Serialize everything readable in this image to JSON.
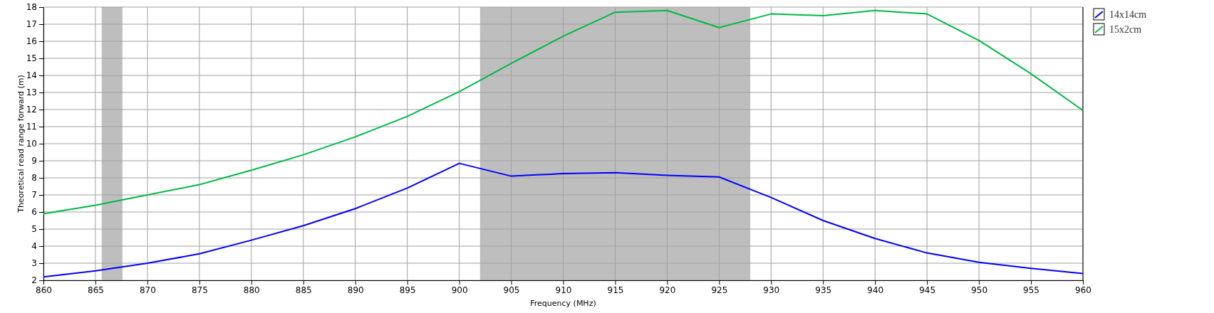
{
  "chart_data": {
    "type": "line",
    "xlabel": "Frequency (MHz)",
    "ylabel": "Theoretical read range forward (m)",
    "x": [
      860,
      865,
      870,
      875,
      880,
      885,
      890,
      895,
      900,
      905,
      910,
      915,
      920,
      925,
      930,
      935,
      940,
      945,
      950,
      955,
      960
    ],
    "series": [
      {
        "name": "14x14cm",
        "color": "#0000ff",
        "values": [
          2.2,
          2.55,
          3.0,
          3.55,
          4.35,
          5.2,
          6.2,
          7.4,
          8.85,
          8.1,
          8.25,
          8.3,
          8.15,
          8.05,
          6.85,
          5.5,
          4.45,
          3.6,
          3.05,
          2.7,
          2.4
        ]
      },
      {
        "name": "15x2cm",
        "color": "#00b945",
        "values": [
          5.9,
          6.4,
          7.0,
          7.6,
          8.45,
          9.35,
          10.4,
          11.6,
          13.05,
          14.7,
          16.3,
          17.7,
          17.8,
          16.8,
          17.6,
          17.5,
          17.8,
          17.6,
          16.05,
          14.1,
          11.95
        ]
      }
    ],
    "xlim": [
      860,
      960
    ],
    "xticks": [
      860,
      865,
      870,
      875,
      880,
      885,
      890,
      895,
      900,
      905,
      910,
      915,
      920,
      925,
      930,
      935,
      940,
      945,
      950,
      955,
      960
    ],
    "ylim": [
      2,
      18
    ],
    "yticks": [
      2,
      3,
      4,
      5,
      6,
      7,
      8,
      9,
      10,
      11,
      12,
      13,
      14,
      15,
      16,
      17,
      18
    ],
    "bands": [
      {
        "axis": "x",
        "from": 865.6,
        "to": 867.6,
        "color": "#bebebe"
      },
      {
        "axis": "x",
        "from": 902,
        "to": 928,
        "color": "#bebebe"
      }
    ],
    "grid": true,
    "legend": "top right",
    "marker": "none",
    "line_style": "solid"
  }
}
